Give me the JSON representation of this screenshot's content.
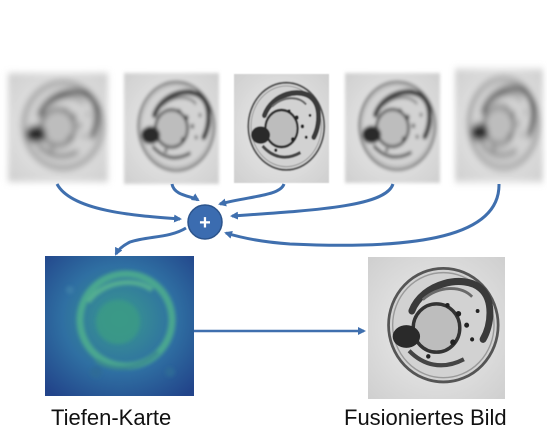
{
  "labels": {
    "operator_symbol": "+",
    "depth_map": "Tiefen-Karte",
    "fused_image": "Fusioniertes Bild"
  },
  "colors": {
    "arrow": "#3f6fae",
    "operator_fill": "#3b6cb0",
    "operator_symbol": "#ffffff",
    "depth_map_base": "#2a4d8f",
    "depth_map_highlight": "#3fae8f",
    "photo_background": "#d9d9d9"
  },
  "inputs": [
    {
      "name": "focus-slice-1",
      "focus": "blurred"
    },
    {
      "name": "focus-slice-2",
      "focus": "partial"
    },
    {
      "name": "focus-slice-3",
      "focus": "sharp"
    },
    {
      "name": "focus-slice-4",
      "focus": "partial"
    },
    {
      "name": "focus-slice-5",
      "focus": "blurred"
    }
  ]
}
